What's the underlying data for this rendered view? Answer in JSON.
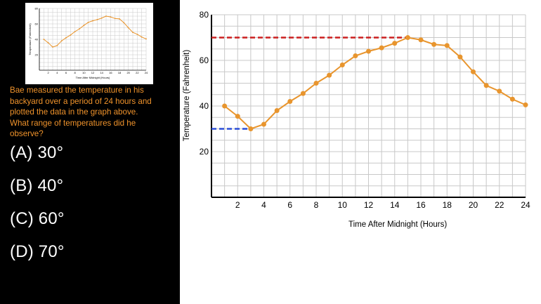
{
  "question": {
    "text": "Bae measured the temperature in his\nbackyard over a period of 24 hours and\nplotted the data in the graph above.\nWhat range of temperatures did he\nobserve?"
  },
  "choices": [
    {
      "label": "(A) 30°"
    },
    {
      "label": "(B) 40°"
    },
    {
      "label": "(C) 60°"
    },
    {
      "label": "(D) 70°"
    }
  ],
  "chart_data": {
    "type": "line",
    "title": "",
    "xlabel": "Time After Midnight (Hours)",
    "ylabel": "Temperature (Fahrenheit)",
    "xlim": [
      0,
      24
    ],
    "ylim": [
      0,
      80
    ],
    "xticks": [
      2,
      4,
      6,
      8,
      10,
      12,
      14,
      16,
      18,
      20,
      22,
      24
    ],
    "yticks": [
      20,
      40,
      60,
      80
    ],
    "grid": true,
    "series": [
      {
        "color": "#e8952e",
        "x": [
          1,
          2,
          3,
          4,
          5,
          6,
          7,
          8,
          9,
          10,
          11,
          12,
          13,
          14,
          15,
          16,
          17,
          18,
          19,
          20,
          21,
          22,
          23,
          24
        ],
        "y": [
          40,
          35.5,
          30,
          32,
          38,
          42,
          45.5,
          50,
          53.5,
          58,
          62,
          64,
          65.5,
          67.5,
          70,
          69,
          67,
          66.5,
          61.5,
          55,
          49,
          46.5,
          43,
          40.5
        ]
      }
    ],
    "reference_lines": [
      {
        "y": 70,
        "x_from": 0,
        "x_to": 15,
        "color": "#cc1f1f",
        "style": "dashed"
      },
      {
        "y": 30,
        "x_from": 0,
        "x_to": 3,
        "color": "#2b4fd8",
        "style": "dashed"
      }
    ]
  }
}
